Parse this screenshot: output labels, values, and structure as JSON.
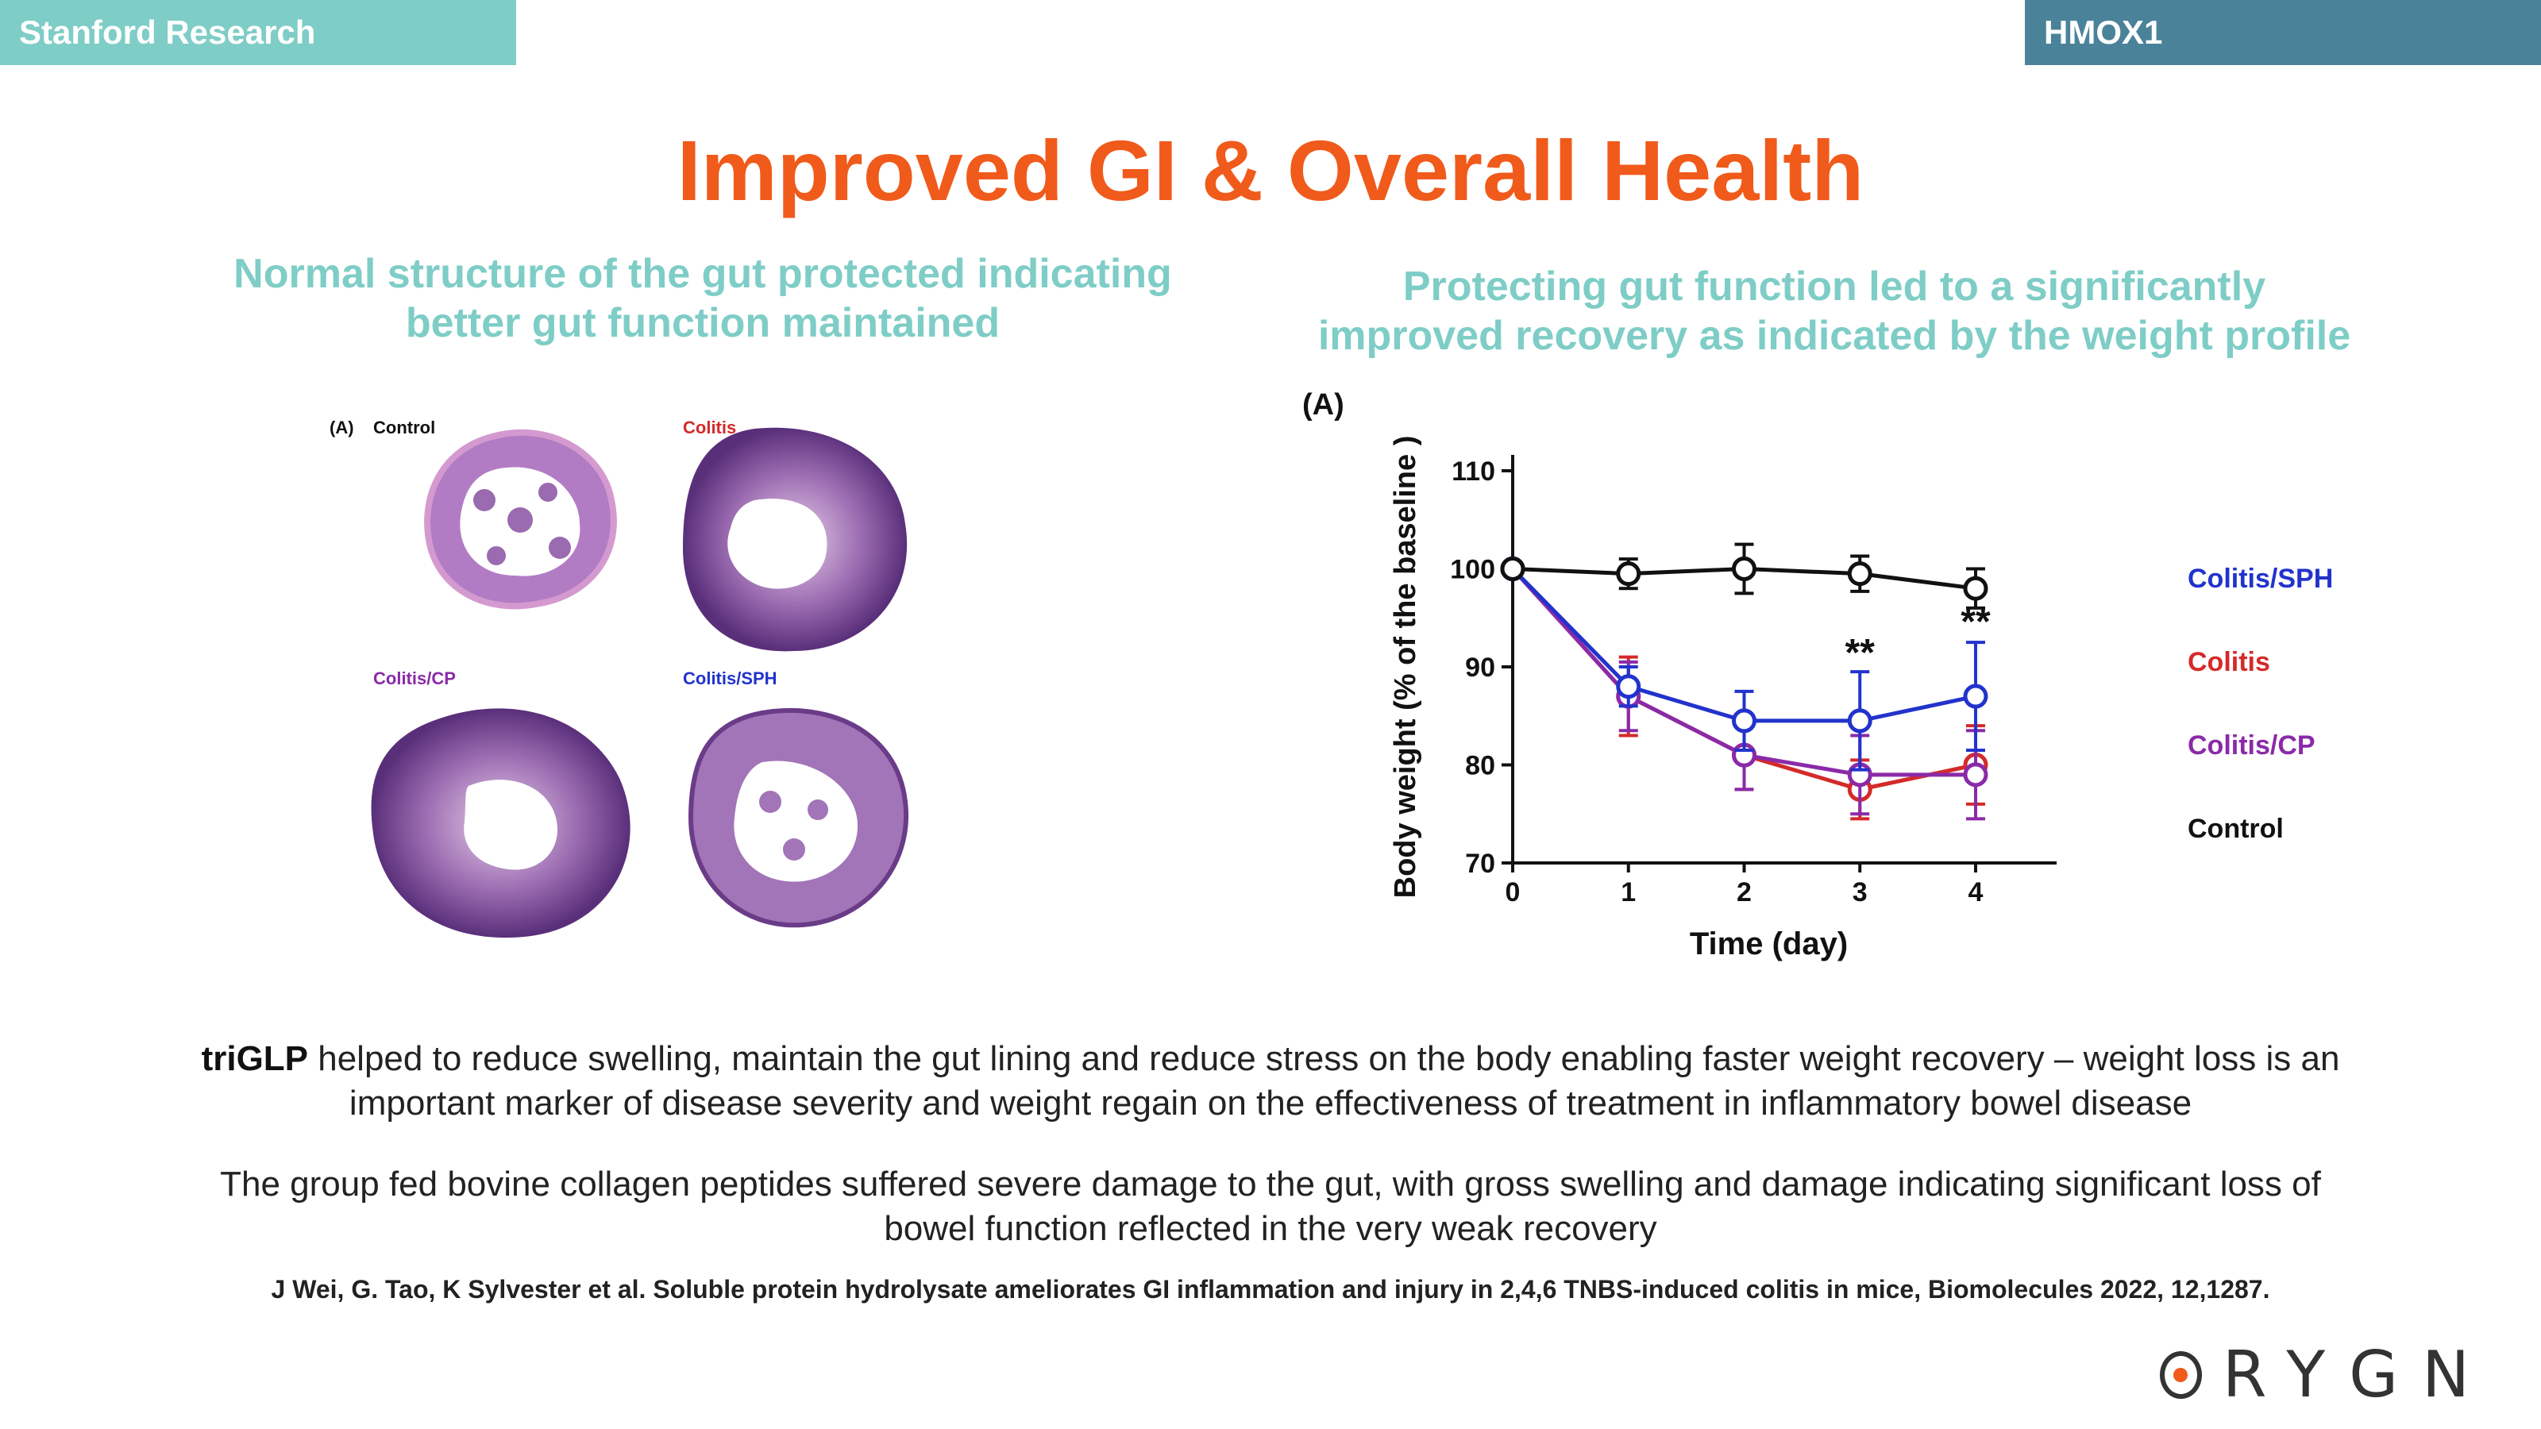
{
  "header": {
    "left_tag": "Stanford Research",
    "right_tag": "HMOX1"
  },
  "title": "Improved GI & Overall Health",
  "left_panel": {
    "subtitle_line1": "Normal structure of the gut protected indicating",
    "subtitle_line2": "better gut function maintained",
    "figure": {
      "panel_label": "(A)",
      "labels": [
        "Control",
        "Colitis",
        "Colitis/CP",
        "Colitis/SPH"
      ],
      "colors": {
        "control": "#111111",
        "colitis": "#d42a2a",
        "cp": "#8a2aa8",
        "sph": "#2233cc"
      }
    }
  },
  "right_panel": {
    "subtitle_line1": "Protecting gut function led to a significantly",
    "subtitle_line2": "improved recovery as indicated by the weight profile",
    "panel_label": "(A)"
  },
  "chart_data": {
    "type": "line",
    "title": "",
    "xlabel": "Time (day)",
    "ylabel": "Body weight (% of the baseline )",
    "x": [
      0,
      1,
      2,
      3,
      4
    ],
    "xlim": [
      0,
      4.7
    ],
    "ylim": [
      70,
      110
    ],
    "yticks": [
      70,
      80,
      90,
      100,
      110
    ],
    "legend_position": "right",
    "series": [
      {
        "name": "Colitis/SPH",
        "color": "#2233cc",
        "values": [
          100,
          88,
          84.5,
          84.5,
          87
        ],
        "errors": [
          0,
          2,
          3,
          5,
          5.5
        ]
      },
      {
        "name": "Colitis",
        "color": "#d42a2a",
        "values": [
          100,
          87,
          81,
          77.5,
          80
        ],
        "errors": [
          0,
          4,
          3.5,
          3,
          4
        ]
      },
      {
        "name": "Colitis/CP",
        "color": "#8a2aa8",
        "values": [
          100,
          87,
          81,
          79,
          79
        ],
        "errors": [
          0,
          3.5,
          3.5,
          4,
          4.5
        ]
      },
      {
        "name": "Control",
        "color": "#111111",
        "values": [
          100,
          99.5,
          100,
          99.5,
          98
        ],
        "errors": [
          0,
          1.5,
          2.5,
          1.8,
          2
        ]
      }
    ],
    "annotations": [
      {
        "x": 3,
        "text": "**"
      },
      {
        "x": 4,
        "text": "**"
      }
    ]
  },
  "body": {
    "p1_bold": "triGLP",
    "p1_line1": " helped to reduce swelling, maintain the gut lining and reduce stress on the body enabling faster weight recovery – weight loss is an",
    "p1_line2": "important marker of disease severity and weight regain on the effectiveness of treatment in inflammatory bowel disease",
    "p2_line1": "The group fed bovine collagen peptides suffered severe damage to the gut, with gross swelling and damage indicating significant loss of",
    "p2_line2": "bowel function reflected in the very weak recovery"
  },
  "citation": "J Wei, G. Tao, K Sylvester et al. Soluble protein hydrolysate ameliorates GI inflammation and injury in 2,4,6 TNBS-induced colitis in mice, Biomolecules 2022, 12,1287.",
  "logo": {
    "text": "RYGN",
    "accent": "#f05a1a"
  }
}
